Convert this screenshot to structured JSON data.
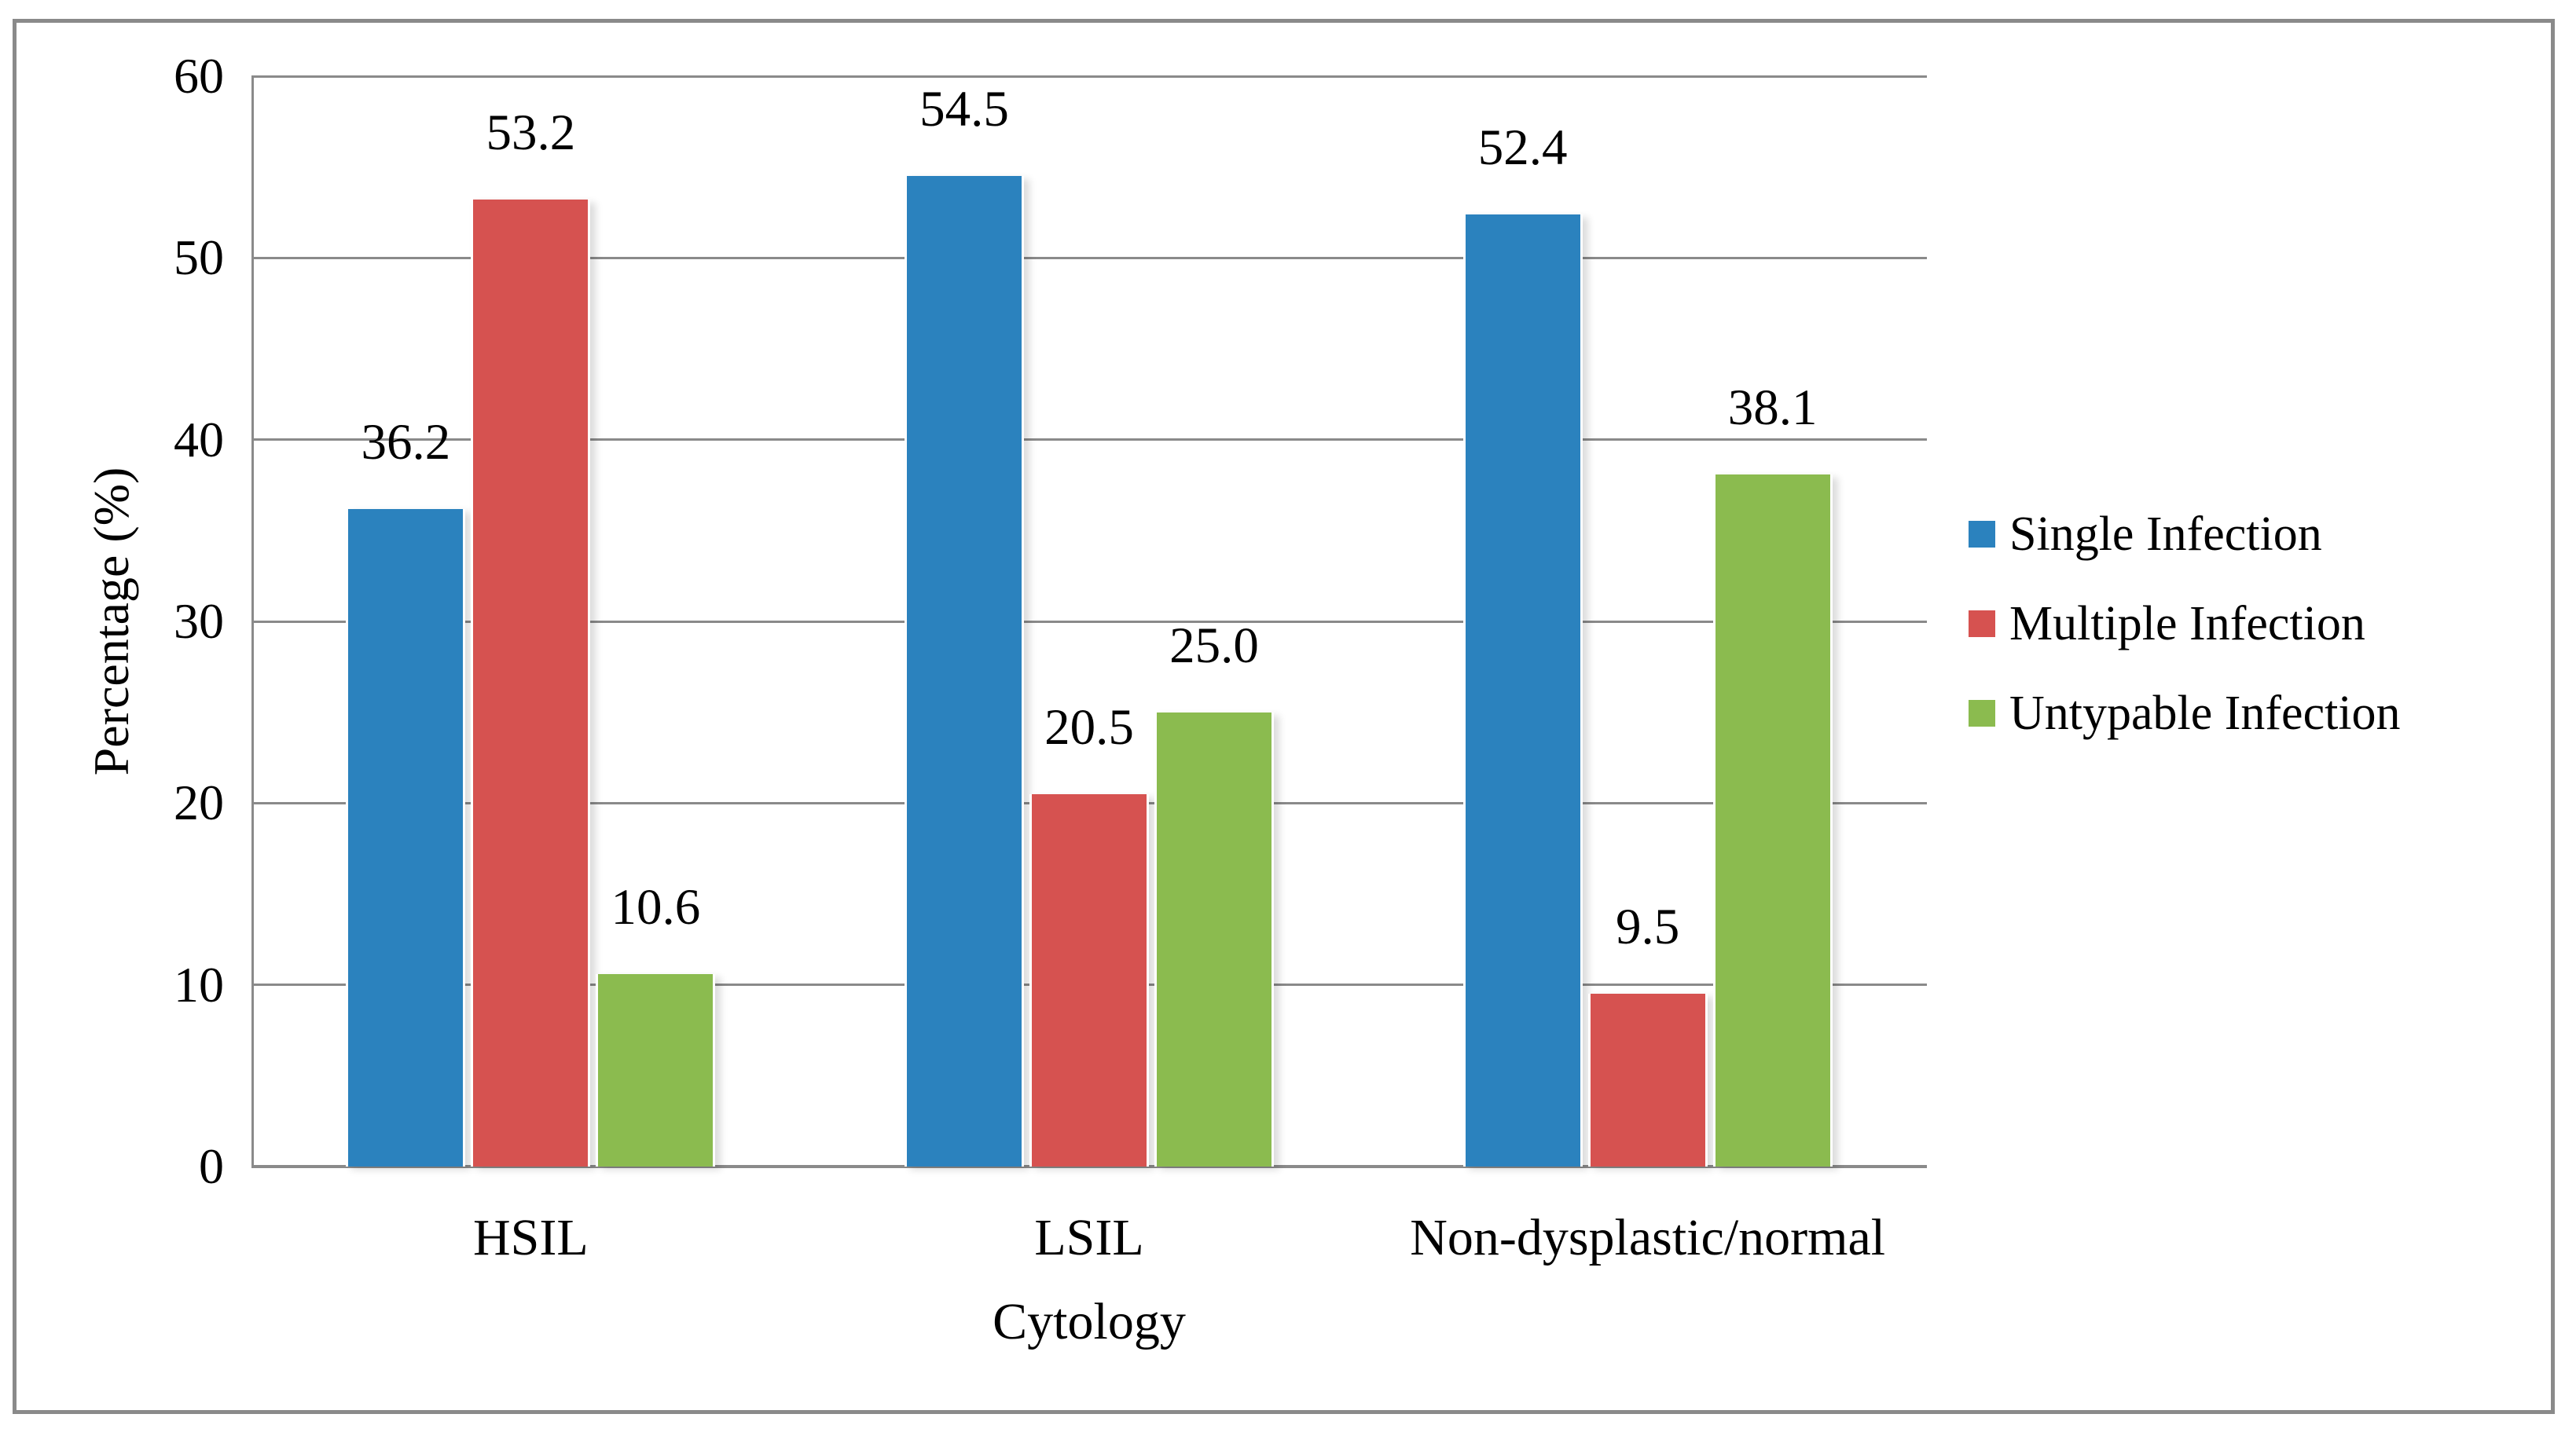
{
  "chart_data": {
    "type": "bar",
    "title": "",
    "xlabel": "Cytology",
    "ylabel": "Percentage (%)",
    "categories": [
      "HSIL",
      "LSIL",
      "Non-dysplastic/normal"
    ],
    "series": [
      {
        "name": "Single Infection",
        "color": "#2b82be",
        "values": [
          36.2,
          54.5,
          52.4
        ],
        "labels": [
          "36.2",
          "54.5",
          "52.4"
        ]
      },
      {
        "name": "Multiple Infection",
        "color": "#d65250",
        "values": [
          53.2,
          20.5,
          9.5
        ],
        "labels": [
          "53.2",
          "20.5",
          "9.5"
        ]
      },
      {
        "name": "Untypable Infection",
        "color": "#8bbb4f",
        "values": [
          10.6,
          25.0,
          38.1
        ],
        "labels": [
          "10.6",
          "25.0",
          "38.1"
        ]
      }
    ],
    "ylim": [
      0,
      60
    ],
    "ytick_step": 10,
    "yticks": [
      "0",
      "10",
      "20",
      "30",
      "40",
      "50",
      "60"
    ],
    "grid": true,
    "legend_position": "right",
    "axis_color": "#8a8a8a",
    "frame_color": "#8a8a8a",
    "text_color": "#000000"
  }
}
